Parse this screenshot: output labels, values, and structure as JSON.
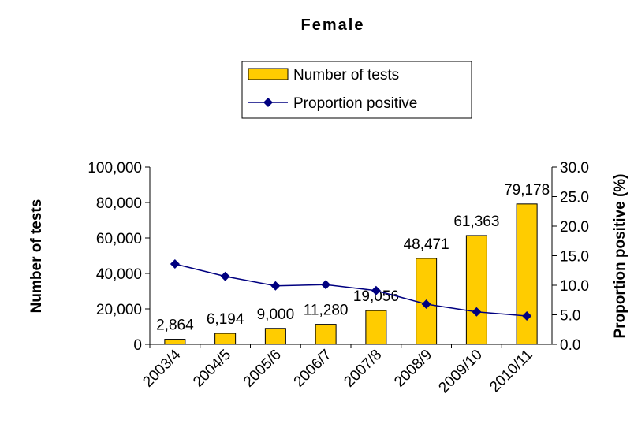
{
  "chart_data": {
    "type": "bar",
    "title": "Female",
    "categories": [
      "2003/4",
      "2004/5",
      "2005/6",
      "2006/7",
      "2007/8",
      "2008/9",
      "2009/10",
      "2010/11"
    ],
    "series": [
      {
        "name": "Number of tests",
        "type": "bar",
        "color": "#ffcc00",
        "values": [
          2864,
          6194,
          9000,
          11280,
          19056,
          48471,
          61363,
          79178
        ],
        "value_labels": [
          "2,864",
          "6,194",
          "9,000",
          "11,280",
          "19,056",
          "48,471",
          "61,363",
          "79,178"
        ]
      },
      {
        "name": "Proportion positive",
        "type": "line",
        "color": "#000080",
        "axis": "y2",
        "values": [
          13.6,
          11.5,
          9.9,
          10.1,
          9.1,
          6.8,
          5.5,
          4.8
        ]
      }
    ],
    "ylabel": "Number of tests",
    "y2label": "Proportion positive (%)",
    "ylim": [
      0,
      100000
    ],
    "yticks": [
      0,
      {
        "value": 20000,
        "label": "20,000"
      },
      {
        "value": 40000,
        "label": "40,000"
      },
      {
        "value": 60000,
        "label": "60,000"
      },
      {
        "value": 80000,
        "label": "80,000"
      },
      {
        "value": 100000,
        "label": "100,000"
      }
    ],
    "y2lim": [
      0,
      30
    ],
    "y2ticks": [
      {
        "value": 0,
        "label": "0.0"
      },
      {
        "value": 5,
        "label": "5.0"
      },
      {
        "value": 10,
        "label": "10.0"
      },
      {
        "value": 15,
        "label": "15.0"
      },
      {
        "value": 20,
        "label": "20.0"
      },
      {
        "value": 25,
        "label": "25.0"
      },
      {
        "value": 30,
        "label": "30.0"
      }
    ],
    "legend": "top",
    "grid": false
  }
}
